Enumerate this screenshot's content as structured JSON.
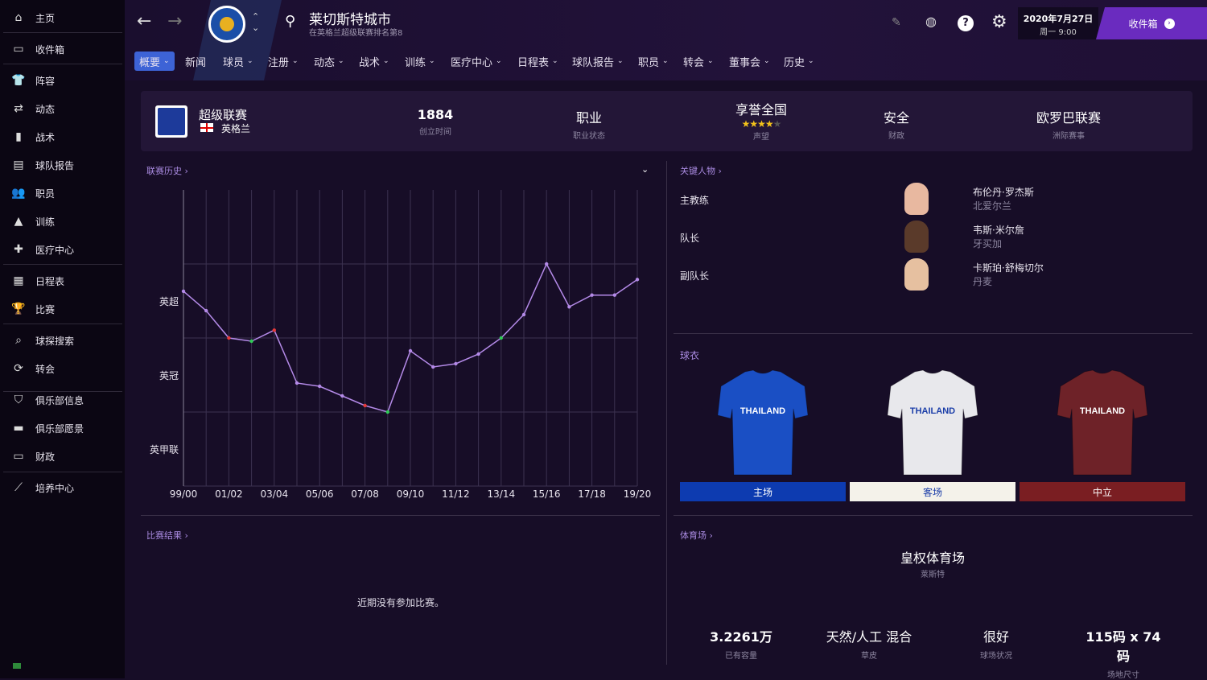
{
  "sidebar": {
    "items": [
      {
        "label": "主页",
        "icon": "home-icon",
        "glyph": "⌂"
      },
      {
        "label": "收件箱",
        "icon": "inbox-icon",
        "glyph": "▭"
      },
      {
        "label": "阵容",
        "icon": "shirt-icon",
        "glyph": "👕"
      },
      {
        "label": "动态",
        "icon": "dynamics-icon",
        "glyph": "⇄"
      },
      {
        "label": "战术",
        "icon": "tactics-icon",
        "glyph": "▮"
      },
      {
        "label": "球队报告",
        "icon": "report-icon",
        "glyph": "▤"
      },
      {
        "label": "职员",
        "icon": "staff-icon",
        "glyph": "👥"
      },
      {
        "label": "训练",
        "icon": "training-icon",
        "glyph": "▲"
      },
      {
        "label": "医疗中心",
        "icon": "medical-icon",
        "glyph": "✚"
      },
      {
        "label": "日程表",
        "icon": "calendar-icon",
        "glyph": "▦"
      },
      {
        "label": "比赛",
        "icon": "trophy-icon",
        "glyph": "🏆"
      },
      {
        "label": "球探搜索",
        "icon": "search-icon",
        "glyph": "⌕"
      },
      {
        "label": "转会",
        "icon": "transfer-icon",
        "glyph": "⟳"
      },
      {
        "label": "俱乐部信息",
        "icon": "shield-icon",
        "glyph": "⛉"
      },
      {
        "label": "俱乐部愿景",
        "icon": "briefcase-icon",
        "glyph": "▬"
      },
      {
        "label": "财政",
        "icon": "money-icon",
        "glyph": "▭"
      },
      {
        "label": "培养中心",
        "icon": "development-icon",
        "glyph": "⟋"
      }
    ]
  },
  "header": {
    "club_name": "莱切斯特城市",
    "club_subtitle": "在英格兰超级联赛排名第8",
    "date": "2020年7月27日",
    "time": "周一 9:00",
    "inbox_label": "收件箱",
    "tabs": [
      {
        "label": "概要",
        "dd": true
      },
      {
        "label": "新闻",
        "dd": false
      },
      {
        "label": "球员",
        "dd": true
      },
      {
        "label": "注册",
        "dd": true
      },
      {
        "label": "动态",
        "dd": true
      },
      {
        "label": "战术",
        "dd": true
      },
      {
        "label": "训练",
        "dd": true
      },
      {
        "label": "医疗中心",
        "dd": true
      },
      {
        "label": "日程表",
        "dd": true
      },
      {
        "label": "球队报告",
        "dd": true
      },
      {
        "label": "职员",
        "dd": true
      },
      {
        "label": "转会",
        "dd": true
      },
      {
        "label": "董事会",
        "dd": true
      },
      {
        "label": "历史",
        "dd": true
      }
    ]
  },
  "info": {
    "league": "超级联赛",
    "nation": "英格兰",
    "founded": "1884",
    "founded_label": "创立时间",
    "status": "职业",
    "status_label": "职业状态",
    "reputation": "享誉全国",
    "reputation_stars": 4,
    "reputation_max": 5,
    "reputation_label": "声望",
    "finance": "安全",
    "finance_label": "财政",
    "continental": "欧罗巴联赛",
    "continental_label": "洲际赛事"
  },
  "league_history": {
    "title": "联赛历史"
  },
  "chart_data": {
    "type": "line",
    "divisions": [
      "英超",
      "英冠",
      "英甲联"
    ],
    "division_sizes": [
      20,
      24,
      24
    ],
    "x": [
      "99/00",
      "00/01",
      "01/02",
      "02/03",
      "03/04",
      "04/05",
      "05/06",
      "06/07",
      "07/08",
      "08/09",
      "09/10",
      "10/11",
      "11/12",
      "12/13",
      "13/14",
      "14/15",
      "15/16",
      "16/17",
      "17/18",
      "18/19",
      "19/20"
    ],
    "tick_labels": [
      "99/00",
      "01/02",
      "03/04",
      "05/06",
      "07/08",
      "09/10",
      "11/12",
      "13/14",
      "15/16",
      "17/18",
      "19/20"
    ],
    "division": [
      "英超",
      "英超",
      "英超",
      "英冠",
      "英超",
      "英冠",
      "英冠",
      "英冠",
      "英冠",
      "英甲联",
      "英冠",
      "英冠",
      "英冠",
      "英冠",
      "英冠",
      "英超",
      "英超",
      "英超",
      "英超",
      "英超",
      "英超"
    ],
    "position": [
      8,
      13,
      20,
      2,
      18,
      15,
      16,
      19,
      22,
      1,
      5,
      10,
      9,
      6,
      1,
      14,
      1,
      12,
      9,
      9,
      5
    ],
    "marker": [
      "n",
      "n",
      "relegated",
      "promoted",
      "relegated",
      "n",
      "n",
      "n",
      "relegated",
      "promoted",
      "n",
      "n",
      "n",
      "n",
      "promoted",
      "n",
      "n",
      "n",
      "n",
      "n",
      "n"
    ],
    "colors": {
      "line": "#b48ae8",
      "relegated": "#e83a3a",
      "promoted": "#2ecc55"
    },
    "grid": true
  },
  "results": {
    "title": "比赛结果",
    "empty": "近期没有参加比赛。"
  },
  "key_people": {
    "title": "关键人物",
    "people": [
      {
        "role": "主教练",
        "name": "布伦丹·罗杰斯",
        "nation": "北爱尔兰"
      },
      {
        "role": "队长",
        "name": "韦斯·米尔詹",
        "nation": "牙买加"
      },
      {
        "role": "副队长",
        "name": "卡斯珀·舒梅切尔",
        "nation": "丹麦"
      }
    ]
  },
  "kits": {
    "title": "球衣",
    "sponsor": "THAILAND",
    "items": [
      {
        "label": "主场",
        "color": "#1a4fc4",
        "bar": "#0d3bb0",
        "text": "#fff"
      },
      {
        "label": "客场",
        "color": "#e8e8ec",
        "bar": "#f4f2ea",
        "text": "#1a3da8"
      },
      {
        "label": "中立",
        "color": "#6e2228",
        "bar": "#7a1e22",
        "text": "#fff"
      }
    ]
  },
  "stadium": {
    "title": "体育场",
    "name": "皇权体育场",
    "city": "莱斯特",
    "capacity": "3.2261万",
    "capacity_label": "已有容量",
    "pitch": "天然/人工 混合",
    "pitch_label": "草皮",
    "condition": "很好",
    "condition_label": "球场状况",
    "size": "115码 x 74码",
    "size_label": "场地尺寸"
  }
}
